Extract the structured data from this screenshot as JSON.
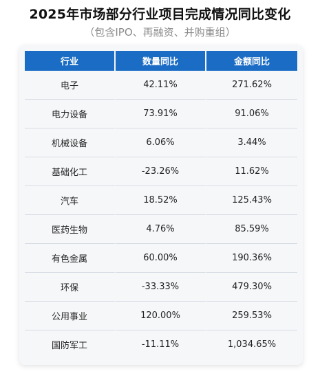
{
  "title": "2025年市场部分行业项目完成情况同比变化",
  "subtitle": "（包含IPO、再融资、并购重组）",
  "table": {
    "headers": [
      "行业",
      "数量同比",
      "金额同比"
    ],
    "rows": [
      [
        "电子",
        "42.11%",
        "271.62%"
      ],
      [
        "电力设备",
        "73.91%",
        "91.06%"
      ],
      [
        "机械设备",
        "6.06%",
        "3.44%"
      ],
      [
        "基础化工",
        "-23.26%",
        "11.62%"
      ],
      [
        "汽车",
        "18.52%",
        "125.43%"
      ],
      [
        "医药生物",
        "4.76%",
        "85.59%"
      ],
      [
        "有色金属",
        "60.00%",
        "190.36%"
      ],
      [
        "环保",
        "-33.33%",
        "479.30%"
      ],
      [
        "公用事业",
        "120.00%",
        "259.53%"
      ],
      [
        "国防军工",
        "-11.11%",
        "1,034.65%"
      ]
    ]
  },
  "colors": {
    "header_bg": "#1a6cc4",
    "header_text": "#ffffff",
    "card_bg": "#f6f7f9",
    "row_divider": "#d6dbe3"
  }
}
